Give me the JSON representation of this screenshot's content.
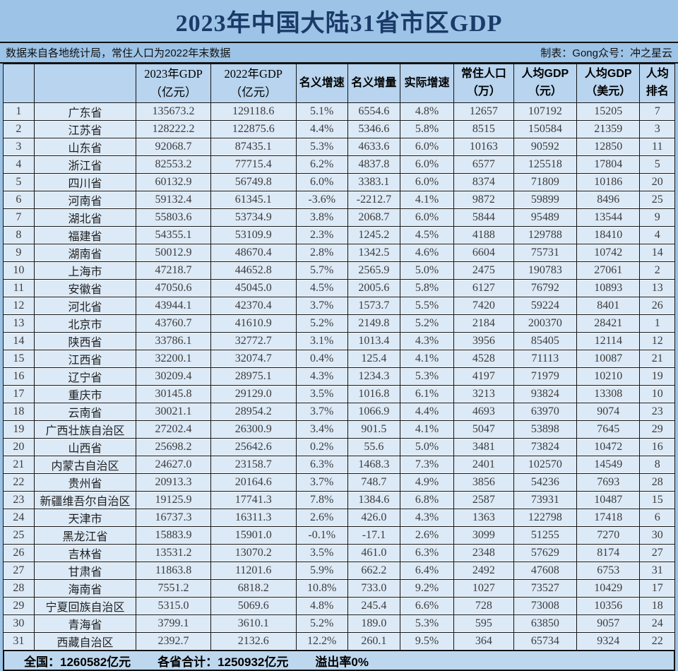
{
  "title": "2023年中国大陆31省市区GDP",
  "subtitle": {
    "left": "数据来自各地统计局，常住人口为2022年末数据",
    "right": "制表：Gong众号：冲之星云"
  },
  "table": {
    "headers": [
      "",
      "",
      "2023年GDP\n（亿元）",
      "2022年GDP\n（亿元）",
      "名义增速",
      "名义增量",
      "实际增速",
      "常住人口\n（万）",
      "人均GDP\n（元）",
      "人均GDP\n（美元）",
      "人均\n排名"
    ],
    "rows": [
      [
        "1",
        "广东省",
        "135673.2",
        "129118.6",
        "5.1%",
        "6554.6",
        "4.8%",
        "12657",
        "107192",
        "15205",
        "7"
      ],
      [
        "2",
        "江苏省",
        "128222.2",
        "122875.6",
        "4.4%",
        "5346.6",
        "5.8%",
        "8515",
        "150584",
        "21359",
        "3"
      ],
      [
        "3",
        "山东省",
        "92068.7",
        "87435.1",
        "5.3%",
        "4633.6",
        "6.0%",
        "10163",
        "90592",
        "12850",
        "11"
      ],
      [
        "4",
        "浙江省",
        "82553.2",
        "77715.4",
        "6.2%",
        "4837.8",
        "6.0%",
        "6577",
        "125518",
        "17804",
        "5"
      ],
      [
        "5",
        "四川省",
        "60132.9",
        "56749.8",
        "6.0%",
        "3383.1",
        "6.0%",
        "8374",
        "71809",
        "10186",
        "20"
      ],
      [
        "6",
        "河南省",
        "59132.4",
        "61345.1",
        "-3.6%",
        "-2212.7",
        "4.1%",
        "9872",
        "59899",
        "8496",
        "25"
      ],
      [
        "7",
        "湖北省",
        "55803.6",
        "53734.9",
        "3.8%",
        "2068.7",
        "6.0%",
        "5844",
        "95489",
        "13544",
        "9"
      ],
      [
        "8",
        "福建省",
        "54355.1",
        "53109.9",
        "2.3%",
        "1245.2",
        "4.5%",
        "4188",
        "129788",
        "18410",
        "4"
      ],
      [
        "9",
        "湖南省",
        "50012.9",
        "48670.4",
        "2.8%",
        "1342.5",
        "4.6%",
        "6604",
        "75731",
        "10742",
        "14"
      ],
      [
        "10",
        "上海市",
        "47218.7",
        "44652.8",
        "5.7%",
        "2565.9",
        "5.0%",
        "2475",
        "190783",
        "27061",
        "2"
      ],
      [
        "11",
        "安徽省",
        "47050.6",
        "45045.0",
        "4.5%",
        "2005.6",
        "5.8%",
        "6127",
        "76792",
        "10893",
        "13"
      ],
      [
        "12",
        "河北省",
        "43944.1",
        "42370.4",
        "3.7%",
        "1573.7",
        "5.5%",
        "7420",
        "59224",
        "8401",
        "26"
      ],
      [
        "13",
        "北京市",
        "43760.7",
        "41610.9",
        "5.2%",
        "2149.8",
        "5.2%",
        "2184",
        "200370",
        "28421",
        "1"
      ],
      [
        "14",
        "陕西省",
        "33786.1",
        "32772.7",
        "3.1%",
        "1013.4",
        "4.3%",
        "3956",
        "85405",
        "12114",
        "12"
      ],
      [
        "15",
        "江西省",
        "32200.1",
        "32074.7",
        "0.4%",
        "125.4",
        "4.1%",
        "4528",
        "71113",
        "10087",
        "21"
      ],
      [
        "16",
        "辽宁省",
        "30209.4",
        "28975.1",
        "4.3%",
        "1234.3",
        "5.3%",
        "4197",
        "71979",
        "10210",
        "19"
      ],
      [
        "17",
        "重庆市",
        "30145.8",
        "29129.0",
        "3.5%",
        "1016.8",
        "6.1%",
        "3213",
        "93824",
        "13308",
        "10"
      ],
      [
        "18",
        "云南省",
        "30021.1",
        "28954.2",
        "3.7%",
        "1066.9",
        "4.4%",
        "4693",
        "63970",
        "9074",
        "23"
      ],
      [
        "19",
        "广西壮族自治区",
        "27202.4",
        "26300.9",
        "3.4%",
        "901.5",
        "4.1%",
        "5047",
        "53898",
        "7645",
        "29"
      ],
      [
        "20",
        "山西省",
        "25698.2",
        "25642.6",
        "0.2%",
        "55.6",
        "5.0%",
        "3481",
        "73824",
        "10472",
        "16"
      ],
      [
        "21",
        "内蒙古自治区",
        "24627.0",
        "23158.7",
        "6.3%",
        "1468.3",
        "7.3%",
        "2401",
        "102570",
        "14549",
        "8"
      ],
      [
        "22",
        "贵州省",
        "20913.3",
        "20164.6",
        "3.7%",
        "748.7",
        "4.9%",
        "3856",
        "54236",
        "7693",
        "28"
      ],
      [
        "23",
        "新疆维吾尔自治区",
        "19125.9",
        "17741.3",
        "7.8%",
        "1384.6",
        "6.8%",
        "2587",
        "73931",
        "10487",
        "15"
      ],
      [
        "24",
        "天津市",
        "16737.3",
        "16311.3",
        "2.6%",
        "426.0",
        "4.3%",
        "1363",
        "122798",
        "17418",
        "6"
      ],
      [
        "25",
        "黑龙江省",
        "15883.9",
        "15901.0",
        "-0.1%",
        "-17.1",
        "2.6%",
        "3099",
        "51255",
        "7270",
        "30"
      ],
      [
        "26",
        "吉林省",
        "13531.2",
        "13070.2",
        "3.5%",
        "461.0",
        "6.3%",
        "2348",
        "57629",
        "8174",
        "27"
      ],
      [
        "27",
        "甘肃省",
        "11863.8",
        "11201.6",
        "5.9%",
        "662.2",
        "6.4%",
        "2492",
        "47608",
        "6753",
        "31"
      ],
      [
        "28",
        "海南省",
        "7551.2",
        "6818.2",
        "10.8%",
        "733.0",
        "9.2%",
        "1027",
        "73527",
        "10429",
        "17"
      ],
      [
        "29",
        "宁夏回族自治区",
        "5315.0",
        "5069.6",
        "4.8%",
        "245.4",
        "6.6%",
        "728",
        "73008",
        "10356",
        "18"
      ],
      [
        "30",
        "青海省",
        "3799.1",
        "3610.1",
        "5.2%",
        "189.0",
        "5.3%",
        "595",
        "63850",
        "9057",
        "24"
      ],
      [
        "31",
        "西藏自治区",
        "2392.7",
        "2132.6",
        "12.2%",
        "260.1",
        "9.5%",
        "364",
        "65734",
        "9324",
        "22"
      ]
    ]
  },
  "footer": {
    "national": "全国：1260582亿元",
    "provinces_total": "各省合计：1250932亿元",
    "spillover": "溢出率0%"
  }
}
